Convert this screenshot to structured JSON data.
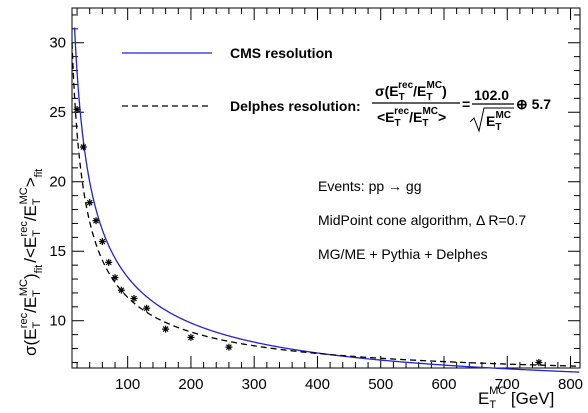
{
  "chart_data": {
    "type": "scatter",
    "xlim": [
      12,
      815
    ],
    "ylim": [
      6.6,
      32.5
    ],
    "x_ticks": [
      100,
      200,
      300,
      400,
      500,
      600,
      700,
      800
    ],
    "y_ticks": [
      10,
      15,
      20,
      25,
      30
    ],
    "x_tick_labels": [
      "100",
      "200",
      "300",
      "400",
      "500",
      "600",
      "700",
      "800"
    ],
    "y_tick_labels": [
      "10",
      "15",
      "20",
      "25",
      "30"
    ],
    "xlabel": {
      "base": "E",
      "sub": "T",
      "sup": "MC",
      "unit": " [GeV]"
    },
    "ylabel": {
      "sigma": "σ(E",
      "t1": "T",
      "s1": "rec",
      "slash1": "/E",
      "t2": "T",
      "s2": "MC",
      "close1": ")",
      "f1": "fit",
      "mid": "/<E",
      "t3": "T",
      "s3": "rec",
      "slash2": "/E",
      "t4": "T",
      "s4": "MC",
      "close2": ">",
      "f2": "fit"
    },
    "points": {
      "x": [
        20,
        30,
        40,
        50,
        60,
        70,
        80,
        90,
        110,
        130,
        160,
        200,
        260,
        750
      ],
      "y": [
        25.2,
        22.5,
        18.5,
        17.2,
        15.7,
        14.2,
        13.1,
        12.2,
        11.6,
        10.9,
        9.4,
        8.8,
        8.1,
        7.0
      ]
    },
    "curves": [
      {
        "name": "CMS resolution",
        "style": "solid",
        "color": "#2222dd",
        "a": 123.0,
        "b": 4.6
      },
      {
        "name": "Delphes resolution:",
        "style": "dashed",
        "color": "#000000",
        "a": 102.0,
        "b": 5.7
      }
    ],
    "formula": {
      "num": {
        "sigma": "σ(E",
        "t1": "T",
        "s1": "rec",
        "slash": "/E",
        "t2": "T",
        "s2": "MC",
        "close": ")"
      },
      "den": {
        "open": "<E",
        "t1": "T",
        "s1": "rec",
        "slash": "/E",
        "t2": "T",
        "s2": "MC",
        "close": ">"
      },
      "eq": "=",
      "coef": "102.0",
      "sqrt_base": "E",
      "sqrt_sub": "T",
      "sqrt_sup": "MC",
      "oplus": "⊕ 5.7"
    },
    "annotations": [
      "Events: pp → gg",
      "MidPoint cone algorithm, Δ R=0.7",
      "MG/ME + Pythia + Delphes"
    ]
  }
}
